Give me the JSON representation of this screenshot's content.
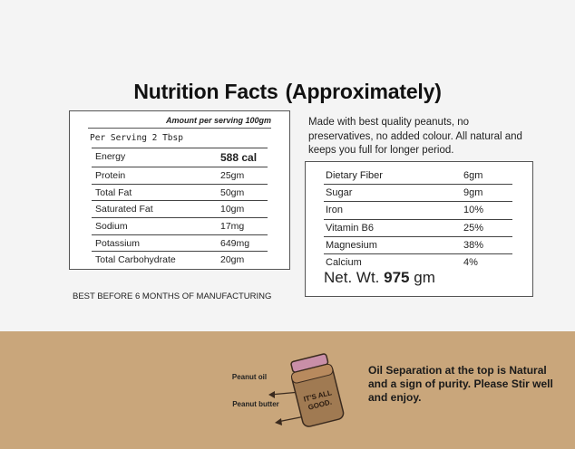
{
  "title": {
    "part1": "Nutrition Facts",
    "part2": "(Approximately)"
  },
  "left_panel": {
    "amount_label": "Amount per serving 100gm",
    "serving_label": "Per Serving 2 Tbsp",
    "rows": [
      {
        "name": "Energy",
        "value": "588 cal"
      },
      {
        "name": "Protein",
        "value": "25gm"
      },
      {
        "name": "Total Fat",
        "value": "50gm"
      },
      {
        "name": "Saturated Fat",
        "value": "10gm"
      },
      {
        "name": "Sodium",
        "value": "17mg"
      },
      {
        "name": "Potassium",
        "value": "649mg"
      },
      {
        "name": "Total Carbohydrate",
        "value": "20gm"
      }
    ]
  },
  "description": "Made with best quality peanuts, no preservatives, no added colour. All natural and keeps you full for longer period.",
  "right_panel": {
    "rows": [
      {
        "name": "Dietary Fiber",
        "value": "6gm"
      },
      {
        "name": "Sugar",
        "value": "9gm"
      },
      {
        "name": "Iron",
        "value": "10%"
      },
      {
        "name": "Vitamin B6",
        "value": "25%"
      },
      {
        "name": "Magnesium",
        "value": "38%"
      },
      {
        "name": "Calcium",
        "value": "4%"
      }
    ],
    "net_prefix": "Net. Wt.",
    "net_value": "975",
    "net_unit": "gm"
  },
  "best_before": "BEST BEFORE 6 MONTHS OF MANUFACTURING",
  "bottom": {
    "label_oil": "Peanut oil",
    "label_butter": "Peanut butter",
    "jar_text_1": "IT'S ALL",
    "jar_text_2": "GOOD.",
    "note": "Oil Separation at the top is Natural and a sign of purity. Please Stir well and enjoy."
  },
  "colors": {
    "band": "#c9a67b",
    "lid": "#c98fa8",
    "jar": "#a07a52",
    "jar_outline": "#3a2a1e"
  }
}
